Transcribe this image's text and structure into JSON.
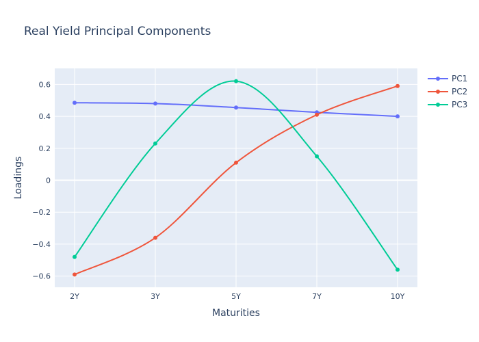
{
  "chart_data": {
    "type": "line",
    "title": "Real Yield Principal Components",
    "xlabel": "Maturities",
    "ylabel": "Loadings",
    "categories": [
      "2Y",
      "3Y",
      "5Y",
      "7Y",
      "10Y"
    ],
    "ylim": [
      -0.67,
      0.7
    ],
    "yticks": [
      -0.6,
      -0.4,
      -0.2,
      0,
      0.2,
      0.4,
      0.6
    ],
    "ytick_labels": [
      "−0.6",
      "−0.4",
      "−0.2",
      "0",
      "0.2",
      "0.4",
      "0.6"
    ],
    "grid": true,
    "legend_position": "top-right",
    "background_color": "#e5ecf6",
    "series": [
      {
        "name": "PC1",
        "color": "#636efa",
        "values": [
          0.485,
          0.48,
          0.455,
          0.425,
          0.4
        ]
      },
      {
        "name": "PC2",
        "color": "#ef553b",
        "values": [
          -0.59,
          -0.36,
          0.11,
          0.41,
          0.59
        ]
      },
      {
        "name": "PC3",
        "color": "#00cc96",
        "values": [
          -0.48,
          0.23,
          0.62,
          0.15,
          -0.56
        ]
      }
    ]
  }
}
